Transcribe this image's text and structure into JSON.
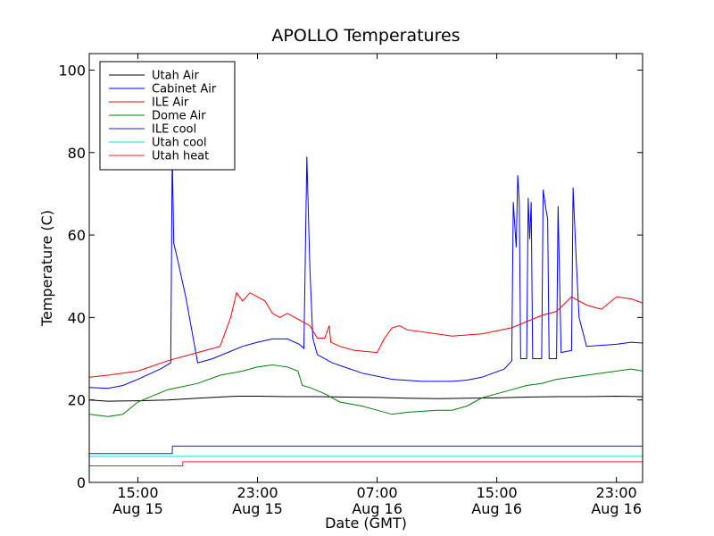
{
  "chart_data": {
    "type": "line",
    "title": "APOLLO Temperatures",
    "xlabel": "Date (GMT)",
    "ylabel": "Temperature (C)",
    "xlim": [
      11.75,
      48.75
    ],
    "ylim": [
      0,
      104
    ],
    "y_ticks": [
      0,
      20,
      40,
      60,
      80,
      100
    ],
    "x_ticks": [
      {
        "x": 15,
        "line1": "15:00",
        "line2": "Aug 15"
      },
      {
        "x": 23,
        "line1": "23:00",
        "line2": "Aug 15"
      },
      {
        "x": 31,
        "line1": "07:00",
        "line2": "Aug 16"
      },
      {
        "x": 39,
        "line1": "15:00",
        "line2": "Aug 16"
      },
      {
        "x": 47,
        "line1": "23:00",
        "line2": "Aug 16"
      }
    ],
    "legend_position": "top-left",
    "series": [
      {
        "name": "Utah Air",
        "color": "#000000",
        "points": [
          [
            11.75,
            20
          ],
          [
            13,
            19.7
          ],
          [
            15,
            19.8
          ],
          [
            17,
            20
          ],
          [
            19,
            20.4
          ],
          [
            21,
            20.8
          ],
          [
            21.7,
            20.9
          ],
          [
            23,
            20.9
          ],
          [
            25,
            20.8
          ],
          [
            27,
            20.8
          ],
          [
            29,
            20.7
          ],
          [
            31,
            20.6
          ],
          [
            33,
            20.4
          ],
          [
            35,
            20.3
          ],
          [
            37,
            20.4
          ],
          [
            39,
            20.5
          ],
          [
            41,
            20.7
          ],
          [
            43,
            20.8
          ],
          [
            45,
            20.8
          ],
          [
            47,
            20.9
          ],
          [
            48.75,
            20.8
          ]
        ]
      },
      {
        "name": "Cabinet Air",
        "color": "#0000ff",
        "points": [
          [
            11.75,
            23
          ],
          [
            13,
            22.8
          ],
          [
            14,
            23.5
          ],
          [
            15,
            25
          ],
          [
            16.5,
            27.5
          ],
          [
            17.2,
            29
          ],
          [
            17.3,
            80
          ],
          [
            17.4,
            58
          ],
          [
            17.6,
            55
          ],
          [
            18.2,
            45
          ],
          [
            19,
            29
          ],
          [
            20,
            30
          ],
          [
            21,
            31.5
          ],
          [
            22,
            33
          ],
          [
            23,
            34
          ],
          [
            24,
            34.8
          ],
          [
            25,
            34.8
          ],
          [
            25.8,
            33.5
          ],
          [
            26.1,
            32.5
          ],
          [
            26.3,
            79
          ],
          [
            26.5,
            52
          ],
          [
            26.7,
            35
          ],
          [
            27,
            31
          ],
          [
            28,
            29
          ],
          [
            30,
            26.5
          ],
          [
            32,
            25
          ],
          [
            34,
            24.5
          ],
          [
            36,
            24.5
          ],
          [
            37,
            24.8
          ],
          [
            38,
            25.5
          ],
          [
            39.5,
            27.5
          ],
          [
            40,
            29.5
          ],
          [
            40.1,
            68
          ],
          [
            40.3,
            57
          ],
          [
            40.4,
            74.5
          ],
          [
            40.5,
            68
          ],
          [
            40.6,
            30
          ],
          [
            41,
            30
          ],
          [
            41.1,
            69
          ],
          [
            41.2,
            59
          ],
          [
            41.3,
            68
          ],
          [
            41.4,
            30
          ],
          [
            42,
            30
          ],
          [
            42.1,
            71
          ],
          [
            42.3,
            66
          ],
          [
            42.4,
            64
          ],
          [
            42.5,
            30
          ],
          [
            43,
            30
          ],
          [
            43.1,
            67
          ],
          [
            43.3,
            31.5
          ],
          [
            44,
            32
          ],
          [
            44.1,
            71.5
          ],
          [
            44.3,
            55
          ],
          [
            44.5,
            40
          ],
          [
            45,
            33
          ],
          [
            47,
            33.5
          ],
          [
            48,
            34
          ],
          [
            48.75,
            33.8
          ]
        ]
      },
      {
        "name": "ILE Air",
        "color": "#ff0000",
        "points": [
          [
            11.75,
            25.5
          ],
          [
            13,
            26
          ],
          [
            15,
            27
          ],
          [
            17,
            29.5
          ],
          [
            19,
            31.5
          ],
          [
            20.5,
            33
          ],
          [
            21.2,
            40
          ],
          [
            21.6,
            46
          ],
          [
            22,
            44
          ],
          [
            22.5,
            46
          ],
          [
            23,
            45
          ],
          [
            23.5,
            44
          ],
          [
            24,
            41
          ],
          [
            24.5,
            40
          ],
          [
            25,
            41
          ],
          [
            25.5,
            40
          ],
          [
            26,
            39
          ],
          [
            26.5,
            38
          ],
          [
            27,
            35
          ],
          [
            27.5,
            35
          ],
          [
            27.8,
            38
          ],
          [
            27.9,
            34
          ],
          [
            28.5,
            33
          ],
          [
            29.5,
            32
          ],
          [
            31,
            31.5
          ],
          [
            31.5,
            35
          ],
          [
            32,
            37.5
          ],
          [
            32.5,
            38
          ],
          [
            33,
            37
          ],
          [
            35,
            36
          ],
          [
            36,
            35.5
          ],
          [
            38,
            36
          ],
          [
            40,
            37.5
          ],
          [
            41,
            39
          ],
          [
            42,
            40.5
          ],
          [
            43,
            41.5
          ],
          [
            44,
            45
          ],
          [
            45,
            43
          ],
          [
            46,
            42
          ],
          [
            47,
            45
          ],
          [
            48,
            44.5
          ],
          [
            48.75,
            43.5
          ]
        ]
      },
      {
        "name": "Dome Air",
        "color": "#008000",
        "points": [
          [
            11.75,
            16.5
          ],
          [
            13,
            16
          ],
          [
            14,
            16.5
          ],
          [
            15,
            19.5
          ],
          [
            16,
            21
          ],
          [
            17,
            22.5
          ],
          [
            19,
            24
          ],
          [
            20.5,
            26
          ],
          [
            22,
            27
          ],
          [
            23,
            28
          ],
          [
            24,
            28.5
          ],
          [
            25,
            28
          ],
          [
            25.7,
            27
          ],
          [
            26,
            23.5
          ],
          [
            26.5,
            23
          ],
          [
            27.5,
            21.5
          ],
          [
            28.5,
            19.5
          ],
          [
            30,
            18.5
          ],
          [
            31,
            17.5
          ],
          [
            32,
            16.5
          ],
          [
            33,
            17
          ],
          [
            35,
            17.5
          ],
          [
            36,
            17.5
          ],
          [
            37,
            18.5
          ],
          [
            38,
            20.5
          ],
          [
            39,
            21.5
          ],
          [
            40,
            22.5
          ],
          [
            41,
            23.5
          ],
          [
            42,
            24
          ],
          [
            43,
            25
          ],
          [
            45,
            26
          ],
          [
            47,
            27
          ],
          [
            48,
            27.5
          ],
          [
            48.75,
            27
          ]
        ]
      },
      {
        "name": "ILE cool",
        "color": "#1c1cd8",
        "points": [
          [
            11.75,
            7
          ],
          [
            17.3,
            7
          ],
          [
            17.31,
            8.8
          ],
          [
            48.75,
            8.8
          ]
        ]
      },
      {
        "name": "Utah cool",
        "color": "#00e8e8",
        "points": [
          [
            11.75,
            6.3
          ],
          [
            48.75,
            6.3
          ]
        ]
      },
      {
        "name": "Utah heat",
        "color": "#ff2020",
        "points": [
          [
            11.75,
            4
          ],
          [
            18,
            4
          ],
          [
            18.01,
            5
          ],
          [
            48.75,
            5
          ]
        ]
      }
    ]
  }
}
